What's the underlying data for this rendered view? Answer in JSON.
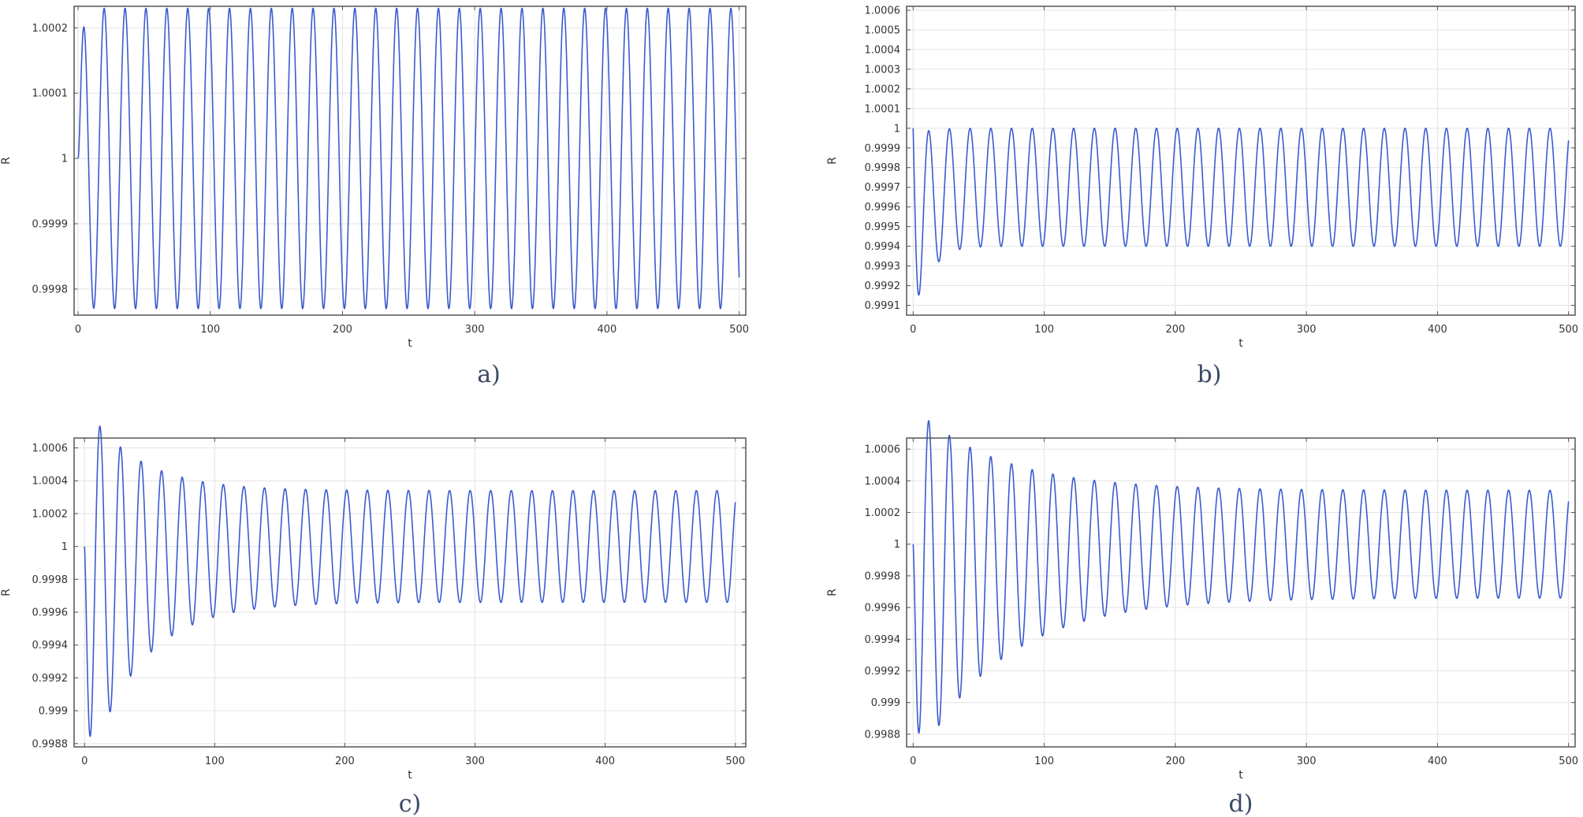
{
  "colors": {
    "series": "#3a5bd0",
    "caption": "#3a4a66"
  },
  "chart_data": [
    {
      "type": "line",
      "caption": "a)",
      "xlabel": "t",
      "ylabel": "R",
      "xlim": [
        -3,
        505
      ],
      "ylim": [
        0.99976,
        1.000233
      ],
      "xticks": [
        0,
        100,
        200,
        300,
        400,
        500
      ],
      "xtick_labels": [
        "0",
        "100",
        "200",
        "300",
        "400",
        "500"
      ],
      "yticks": [
        0.9998,
        0.9999,
        1.0,
        1.0001,
        1.0002
      ],
      "ytick_labels": [
        "0.9998",
        "0.9999",
        "1",
        "1.0001",
        "1.0002"
      ],
      "grid": true,
      "series": [
        {
          "name": "R",
          "model": "damped-oscillation",
          "start": 1.0,
          "center": 1.0,
          "amplitude": 0.00023,
          "initial_amplitude": 0.00023,
          "center_offset": 0.0,
          "period": 15.8,
          "tau": 60,
          "phase_sign": 1,
          "t_end": 500
        }
      ]
    },
    {
      "type": "line",
      "caption": "b)",
      "xlabel": "t",
      "ylabel": "R",
      "xlim": [
        -5,
        505
      ],
      "ylim": [
        0.99905,
        1.00062
      ],
      "xticks": [
        0,
        100,
        200,
        300,
        400,
        500
      ],
      "xtick_labels": [
        "0",
        "100",
        "200",
        "300",
        "400",
        "500"
      ],
      "yticks": [
        0.9991,
        0.9992,
        0.9993,
        0.9994,
        0.9995,
        0.9996,
        0.9997,
        0.9998,
        0.9999,
        1.0,
        1.0001,
        1.0002,
        1.0003,
        1.0004,
        1.0005,
        1.0006
      ],
      "ytick_labels": [
        "0.9991",
        "0.9992",
        "0.9993",
        "0.9994",
        "0.9995",
        "0.9996",
        "0.9997",
        "0.9998",
        "0.9999",
        "1",
        "1.0001",
        "1.0002",
        "1.0003",
        "1.0004",
        "1.0005",
        "1.0006"
      ],
      "grid": true,
      "series": [
        {
          "name": "R",
          "model": "damped-oscillation",
          "start": 1.0,
          "center": 0.9997,
          "amplitude": 0.0003,
          "initial_amplitude": 0.00056,
          "center_offset": 0.0003,
          "period": 15.8,
          "tau": 10,
          "phase_sign": -1,
          "t_end": 500
        }
      ]
    },
    {
      "type": "line",
      "caption": "c)",
      "xlabel": "t",
      "ylabel": "R",
      "xlim": [
        -8,
        508
      ],
      "ylim": [
        0.99878,
        1.00066
      ],
      "xticks": [
        0,
        100,
        200,
        300,
        400,
        500
      ],
      "xtick_labels": [
        "0",
        "100",
        "200",
        "300",
        "400",
        "500"
      ],
      "yticks": [
        0.9988,
        0.999,
        0.9992,
        0.9994,
        0.9996,
        0.9998,
        1.0,
        1.0002,
        1.0004,
        1.0006
      ],
      "ytick_labels": [
        "0.9988",
        "0.999",
        "0.9992",
        "0.9994",
        "0.9996",
        "0.9998",
        "1",
        "1.0002",
        "1.0004",
        "1.0006"
      ],
      "grid": true,
      "series": [
        {
          "name": "R",
          "model": "damped-oscillation",
          "start": 1.0,
          "center": 1.0,
          "amplitude": 0.00034,
          "initial_amplitude": 0.00115,
          "center_offset": 0.00028,
          "period": 15.8,
          "tau": 40,
          "phase_sign": -1,
          "t_end": 500
        }
      ]
    },
    {
      "type": "line",
      "caption": "d)",
      "xlabel": "t",
      "ylabel": "R",
      "xlim": [
        -5,
        505
      ],
      "ylim": [
        0.99872,
        1.00067
      ],
      "xticks": [
        0,
        100,
        200,
        300,
        400,
        500
      ],
      "xtick_labels": [
        "0",
        "100",
        "200",
        "300",
        "400",
        "500"
      ],
      "yticks": [
        0.9988,
        0.999,
        0.9992,
        0.9994,
        0.9996,
        0.9998,
        1.0,
        1.0002,
        1.0004,
        1.0006
      ],
      "ytick_labels": [
        "0.9988",
        "0.999",
        "0.9992",
        "0.9994",
        "0.9996",
        "0.9998",
        "1",
        "1.0002",
        "1.0004",
        "1.0006"
      ],
      "grid": true,
      "series": [
        {
          "name": "R",
          "model": "damped-oscillation",
          "start": 1.0,
          "center": 1.0,
          "amplitude": 0.00034,
          "initial_amplitude": 0.00115,
          "center_offset": 0.00028,
          "period": 15.8,
          "tau": 65,
          "phase_sign": -1,
          "t_end": 500
        }
      ]
    }
  ]
}
